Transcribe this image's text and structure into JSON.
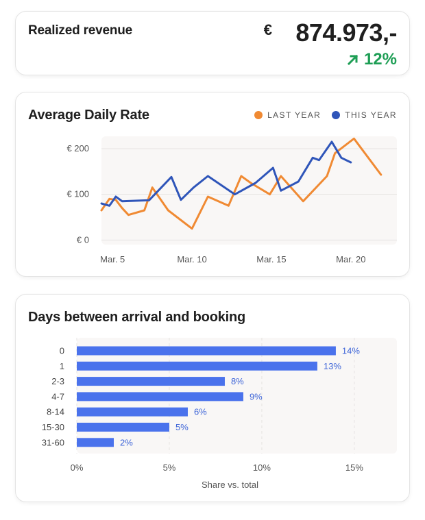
{
  "revenue": {
    "title": "Realized revenue",
    "currency": "€",
    "value": "874.973,-",
    "change": "12%",
    "change_icon": "arrow-up-right-icon",
    "change_color": "#1e9e55"
  },
  "colors": {
    "last_year": "#f08a33",
    "this_year": "#2f55b9",
    "bar": "#4a72ec",
    "bar_label": "#3f66d8",
    "plot_bg": "#f9f7f6",
    "grid": "#e6e3e1"
  },
  "chart_data": [
    {
      "type": "line",
      "title": "Average Daily Rate",
      "legend": [
        "LAST YEAR",
        "THIS YEAR"
      ],
      "legend_position": "top-right",
      "x_ticks": [
        {
          "x": 5,
          "label": "Mar. 5"
        },
        {
          "x": 10,
          "label": "Mar. 10"
        },
        {
          "x": 15,
          "label": "Mar. 15"
        },
        {
          "x": 20,
          "label": "Mar. 20"
        }
      ],
      "y_ticks": [
        {
          "y": 0,
          "label": "€ 0"
        },
        {
          "y": 100,
          "label": "€ 100"
        },
        {
          "y": 200,
          "label": "€ 200"
        }
      ],
      "xlim": [
        4.3,
        22.9
      ],
      "ylim": [
        -10,
        227
      ],
      "grid": true,
      "series": [
        {
          "name": "LAST YEAR",
          "color": "#f08a33",
          "points": [
            [
              4.3,
              65
            ],
            [
              4.8,
              90
            ],
            [
              5.2,
              88
            ],
            [
              5.6,
              70
            ],
            [
              6.0,
              55
            ],
            [
              7.0,
              65
            ],
            [
              7.5,
              115
            ],
            [
              8.5,
              65
            ],
            [
              10.0,
              25
            ],
            [
              11.0,
              95
            ],
            [
              12.3,
              75
            ],
            [
              13.1,
              140
            ],
            [
              13.7,
              125
            ],
            [
              14.9,
              100
            ],
            [
              15.6,
              140
            ],
            [
              17.0,
              85
            ],
            [
              18.5,
              140
            ],
            [
              19.0,
              190
            ],
            [
              20.2,
              222
            ],
            [
              21.9,
              143
            ]
          ]
        },
        {
          "name": "THIS YEAR",
          "color": "#2f55b9",
          "points": [
            [
              4.3,
              80
            ],
            [
              4.8,
              75
            ],
            [
              5.2,
              95
            ],
            [
              5.6,
              85
            ],
            [
              7.3,
              87
            ],
            [
              8.7,
              138
            ],
            [
              9.3,
              88
            ],
            [
              10.1,
              115
            ],
            [
              11.0,
              140
            ],
            [
              12.7,
              100
            ],
            [
              14.0,
              125
            ],
            [
              15.1,
              158
            ],
            [
              15.6,
              108
            ],
            [
              16.7,
              128
            ],
            [
              17.6,
              180
            ],
            [
              18.0,
              175
            ],
            [
              18.8,
              215
            ],
            [
              19.4,
              180
            ],
            [
              20.0,
              170
            ]
          ]
        }
      ]
    },
    {
      "type": "bar",
      "orientation": "horizontal",
      "title": "Days between arrival and booking",
      "categories": [
        "0",
        "1",
        "2-3",
        "4-7",
        "8-14",
        "15-30",
        "31-60"
      ],
      "values": [
        14,
        13,
        8,
        9,
        6,
        5,
        2
      ],
      "value_labels": [
        "14%",
        "13%",
        "8%",
        "9%",
        "6%",
        "5%",
        "2%"
      ],
      "x_ticks": [
        {
          "x": 0,
          "label": "0%"
        },
        {
          "x": 5,
          "label": "5%"
        },
        {
          "x": 10,
          "label": "10%"
        },
        {
          "x": 15,
          "label": "15%"
        }
      ],
      "xlim": [
        0,
        17.3
      ],
      "xlabel": "Share vs. total",
      "grid": true
    }
  ]
}
